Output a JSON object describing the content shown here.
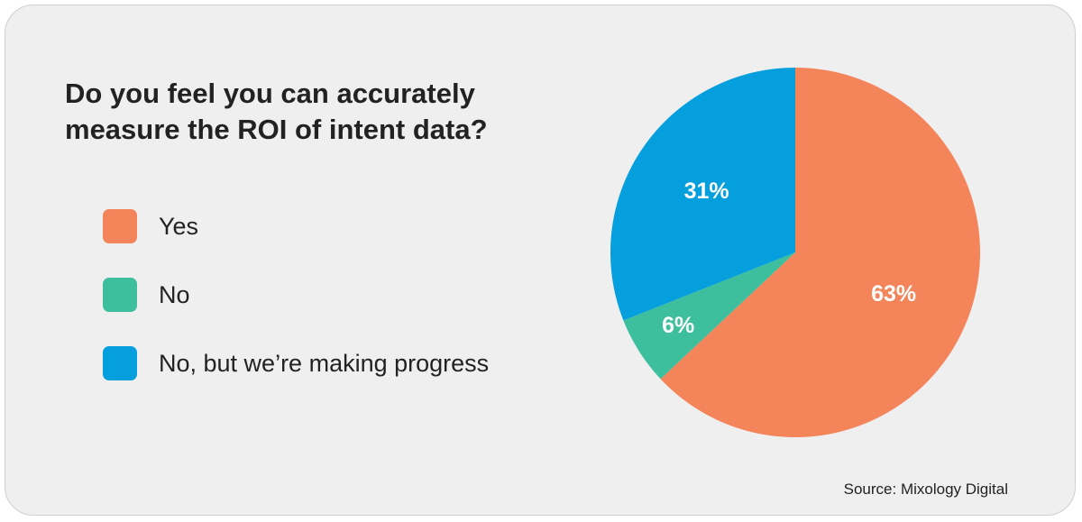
{
  "chart_data": {
    "type": "pie",
    "title": "Do you feel you can accurately measure the ROI of intent data?",
    "categories": [
      "Yes",
      "No",
      "No, but we’re making progress"
    ],
    "values": [
      63,
      6,
      31
    ],
    "value_labels": [
      "63%",
      "6%",
      "31%"
    ],
    "colors": [
      "#f4845a",
      "#3dbf9d",
      "#049fdc"
    ],
    "source": "Source: Mixology Digital"
  }
}
